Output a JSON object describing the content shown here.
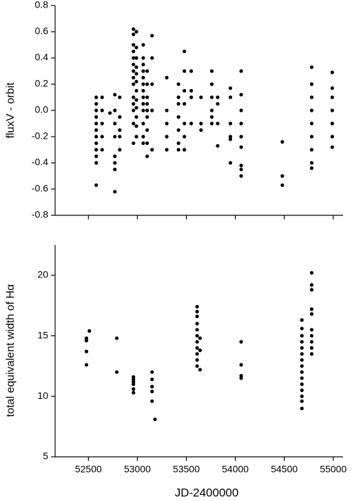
{
  "chart_data": [
    {
      "type": "scatter",
      "y_label": "fluxV - orbit",
      "color": "#000000",
      "xlim": [
        52160,
        55100
      ],
      "xticks": [
        52500,
        53000,
        53500,
        54000,
        54500,
        55000
      ],
      "ylim": [
        -0.8,
        0.8
      ],
      "yticks": [
        0.8,
        0.6,
        0.4,
        0.2,
        {
          "value": 0,
          "label": "0.0"
        },
        -0.2,
        -0.4,
        -0.6,
        -0.8
      ],
      "x": [
        52580,
        52580,
        52580,
        52580,
        52580,
        52580,
        52580,
        52580,
        52580,
        52580,
        52580,
        52580,
        52640,
        52640,
        52640,
        52640,
        52640,
        52720,
        52770,
        52770,
        52770,
        52770,
        52770,
        52770,
        52770,
        52770,
        52820,
        52820,
        52820,
        52820,
        52820,
        52960,
        52960,
        52960,
        52960,
        52960,
        52960,
        52960,
        52960,
        52960,
        52960,
        52960,
        52960,
        52960,
        52960,
        52990,
        52990,
        52990,
        52990,
        52990,
        52990,
        52990,
        52990,
        52990,
        52990,
        52990,
        52990,
        53060,
        53060,
        53060,
        53060,
        53060,
        53060,
        53060,
        53060,
        53060,
        53060,
        53060,
        53060,
        53060,
        53100,
        53100,
        53100,
        53100,
        53100,
        53100,
        53100,
        53100,
        53100,
        53150,
        53150,
        53150,
        53150,
        53150,
        53300,
        53300,
        53300,
        53300,
        53300,
        53420,
        53420,
        53420,
        53420,
        53420,
        53420,
        53420,
        53480,
        53480,
        53480,
        53480,
        53480,
        53480,
        53480,
        53550,
        53550,
        53550,
        53550,
        53650,
        53650,
        53650,
        53760,
        53760,
        53760,
        53760,
        53760,
        53760,
        53820,
        53820,
        53820,
        53820,
        53950,
        53950,
        53950,
        53950,
        53950,
        53950,
        54060,
        54060,
        54060,
        54060,
        54060,
        54060,
        54060,
        54060,
        54060,
        54480,
        54480,
        54480,
        54780,
        54780,
        54780,
        54780,
        54780,
        54780,
        54780,
        54780,
        54780,
        54990,
        54990,
        54990,
        54990,
        54990,
        54990,
        54990
      ],
      "values": [
        -0.57,
        -0.4,
        -0.35,
        -0.3,
        -0.25,
        -0.2,
        -0.15,
        -0.1,
        -0.05,
        0.0,
        0.05,
        0.1,
        -0.3,
        -0.2,
        -0.1,
        0.0,
        0.1,
        -0.02,
        -0.62,
        -0.45,
        -0.4,
        -0.35,
        -0.2,
        -0.1,
        0.0,
        0.12,
        -0.3,
        -0.2,
        -0.15,
        -0.05,
        0.1,
        0.62,
        0.58,
        0.5,
        0.45,
        0.4,
        0.35,
        0.3,
        0.25,
        0.2,
        0.1,
        0.05,
        0.0,
        -0.1,
        -0.25,
        0.6,
        0.48,
        0.4,
        0.33,
        0.28,
        0.22,
        0.15,
        0.08,
        0.02,
        -0.05,
        -0.12,
        -0.2,
        0.5,
        0.4,
        0.35,
        0.3,
        0.25,
        0.2,
        0.15,
        0.1,
        0.05,
        0.0,
        -0.1,
        -0.2,
        -0.25,
        0.3,
        0.2,
        0.1,
        0.05,
        0.0,
        -0.05,
        -0.15,
        -0.25,
        -0.35,
        0.57,
        0.4,
        0.2,
        0.0,
        -0.3,
        0.25,
        0.0,
        -0.1,
        -0.2,
        -0.3,
        0.2,
        0.1,
        0.05,
        -0.05,
        -0.15,
        -0.25,
        -0.3,
        0.45,
        0.3,
        0.15,
        0.05,
        -0.1,
        -0.2,
        -0.3,
        0.3,
        0.15,
        0.1,
        -0.1,
        0.1,
        -0.1,
        -0.15,
        0.3,
        0.2,
        0.1,
        0.0,
        -0.05,
        -0.1,
        0.1,
        0.05,
        -0.1,
        -0.27,
        0.17,
        0.1,
        -0.1,
        -0.2,
        -0.4,
        -0.22,
        0.3,
        0.12,
        0.0,
        -0.1,
        -0.2,
        -0.28,
        -0.42,
        -0.45,
        -0.5,
        -0.24,
        -0.5,
        -0.57,
        0.33,
        0.2,
        0.1,
        0.0,
        -0.1,
        -0.2,
        -0.3,
        -0.4,
        -0.44,
        0.29,
        0.17,
        0.1,
        0.0,
        -0.1,
        -0.2,
        -0.28
      ]
    },
    {
      "type": "scatter",
      "y_label": "total equivalent width of Hα",
      "x_label": "JD-2400000",
      "color": "#000000",
      "xlim": [
        52160,
        55100
      ],
      "xticks": [
        52500,
        53000,
        53500,
        54000,
        54500,
        55000
      ],
      "ylim": [
        5,
        22.5
      ],
      "yticks": [
        5,
        10,
        15,
        20
      ],
      "x": [
        52480,
        52480,
        52480,
        52480,
        52510,
        52790,
        52790,
        52960,
        52960,
        52960,
        52960,
        52960,
        52960,
        53150,
        53150,
        53150,
        53150,
        53150,
        53180,
        53610,
        53610,
        53610,
        53610,
        53610,
        53610,
        53610,
        53610,
        53610,
        53610,
        53610,
        53640,
        53640,
        53640,
        54060,
        54060,
        54060,
        54060,
        54680,
        54680,
        54680,
        54680,
        54680,
        54680,
        54680,
        54680,
        54680,
        54680,
        54680,
        54680,
        54680,
        54680,
        54680,
        54780,
        54780,
        54780,
        54780,
        54780,
        54780,
        54780,
        54780,
        54780,
        54780
      ],
      "values": [
        14.8,
        14.6,
        13.7,
        12.6,
        15.4,
        14.8,
        12.0,
        11.6,
        11.4,
        11.2,
        11.0,
        10.6,
        10.3,
        12.0,
        11.4,
        10.8,
        10.4,
        9.6,
        8.1,
        17.4,
        17.0,
        16.6,
        16.0,
        15.5,
        15.0,
        14.5,
        14.0,
        13.5,
        13.0,
        12.5,
        14.8,
        13.8,
        12.2,
        14.5,
        12.6,
        11.7,
        11.5,
        16.3,
        15.6,
        15.0,
        14.5,
        14.0,
        13.5,
        13.0,
        12.5,
        12.0,
        11.5,
        11.0,
        10.5,
        10.0,
        9.6,
        9.0,
        20.2,
        19.2,
        18.8,
        17.2,
        16.8,
        15.5,
        15.0,
        14.5,
        14.0,
        13.5
      ]
    }
  ]
}
